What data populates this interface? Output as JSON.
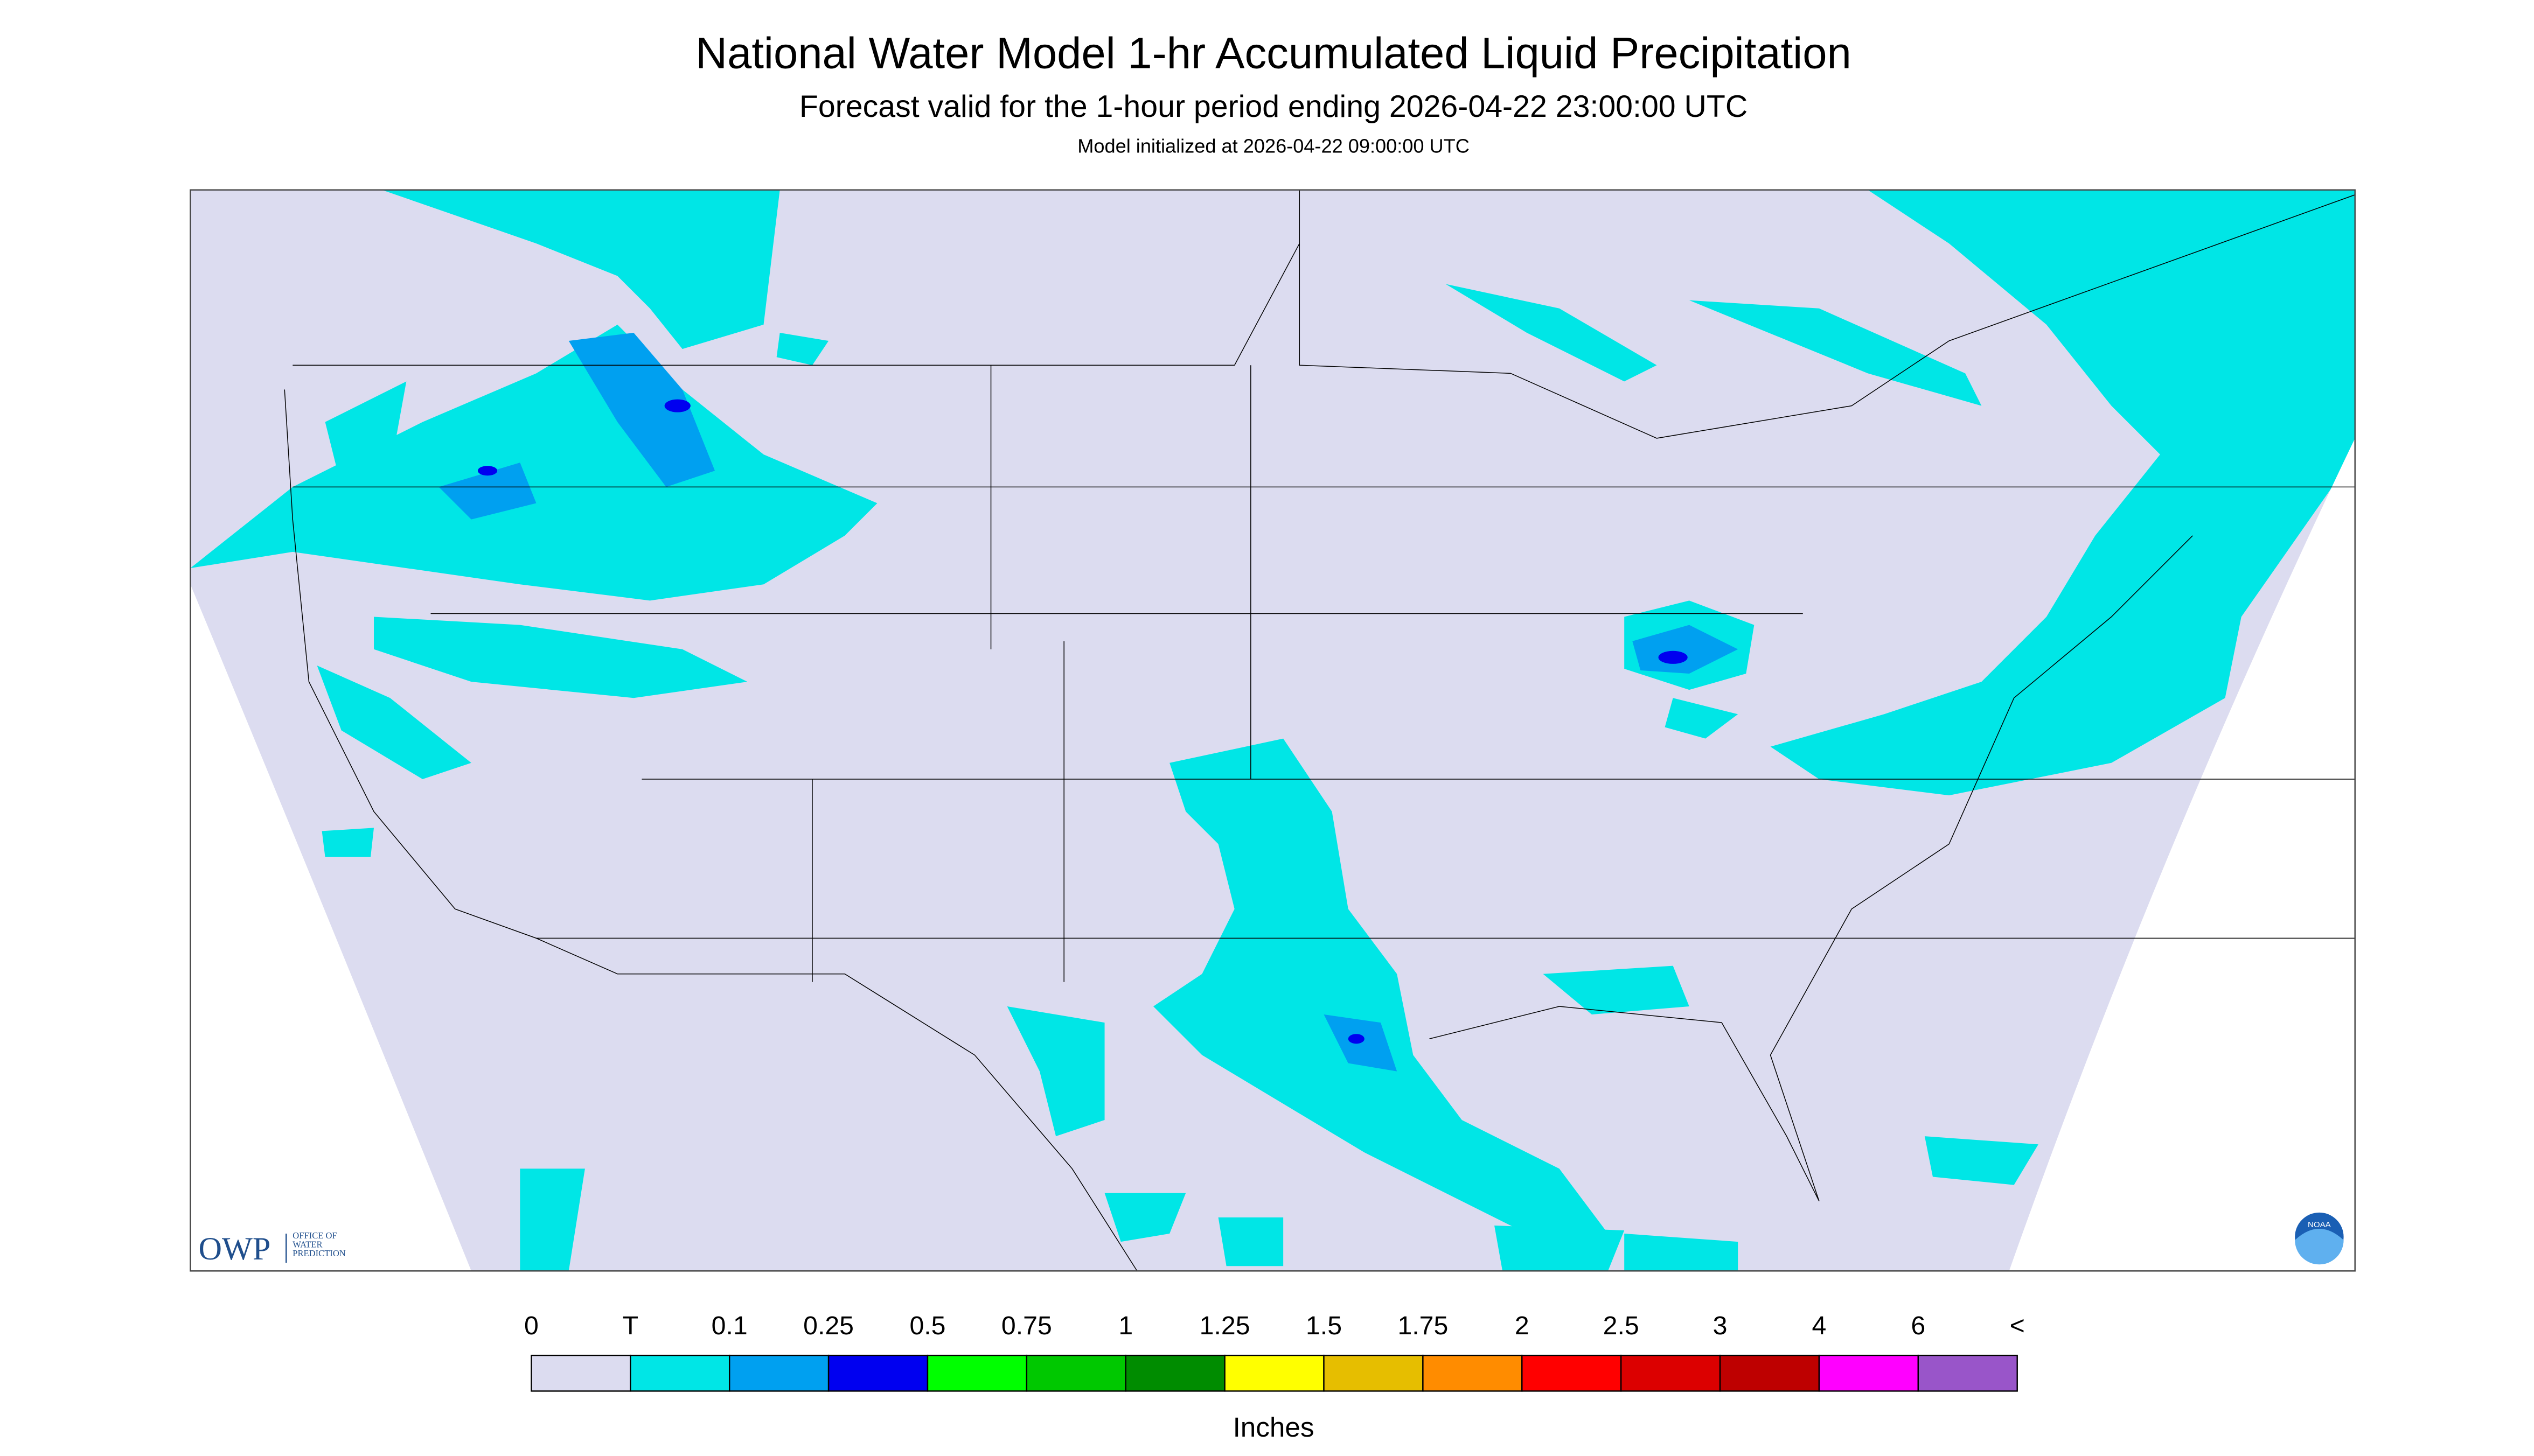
{
  "header": {
    "title": "National Water Model 1-hr Accumulated Liquid Precipitation",
    "subtitle": "Forecast valid for the 1-hour period ending 2026-04-22 23:00:00 UTC",
    "note": "Model initialized at 2026-04-22 09:00:00 UTC"
  },
  "logo": {
    "acronym": "OWP",
    "lines": [
      "OFFICE OF",
      "WATER",
      "PREDICTION"
    ],
    "badge": "NOAA"
  },
  "legend": {
    "labels": [
      "0",
      "T",
      "0.1",
      "0.25",
      "0.5",
      "0.75",
      "1",
      "1.25",
      "1.5",
      "1.75",
      "2",
      "2.5",
      "3",
      "4",
      "6",
      "<"
    ],
    "colors": [
      "#dcdcf0",
      "#00e6e6",
      "#00a0f0",
      "#0000f0",
      "#00ff00",
      "#00c800",
      "#008c00",
      "#ffff00",
      "#e6be00",
      "#ff8c00",
      "#ff0000",
      "#dc0000",
      "#be0000",
      "#ff00ff",
      "#9955c9"
    ],
    "units": "Inches"
  }
}
